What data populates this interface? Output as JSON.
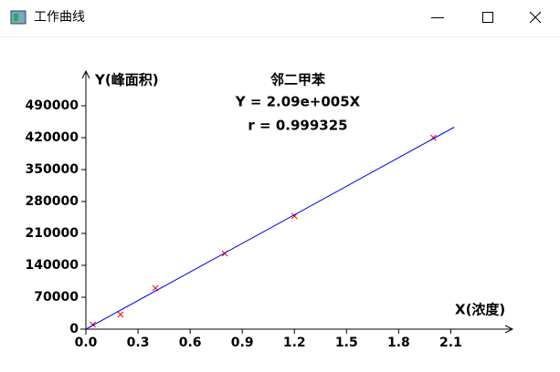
{
  "window_title": "工作曲线",
  "chart_data": {
    "type": "scatter",
    "title": "邻二甲苯",
    "equation": "Y = 2.09e+005X",
    "r_label": "r = 0.999325",
    "x_label": "X(浓度)",
    "y_label": "Y(峰面积)",
    "xlim": [
      0,
      2.45
    ],
    "ylim": [
      0,
      566000
    ],
    "xticks": [
      {
        "value": 0,
        "label": "0.0"
      },
      0.3,
      0.6,
      0.9,
      1.2,
      1.5,
      1.8,
      2.1
    ],
    "yticks": [
      0,
      70000,
      140000,
      210000,
      280000,
      350000,
      420000,
      490000
    ],
    "series": [
      {
        "type": "scatter",
        "color": "#ff0000",
        "x": [
          0.04,
          0.2,
          0.4,
          0.8,
          1.2,
          2.0
        ],
        "values": [
          10000,
          32000,
          90000,
          166000,
          248000,
          420000
        ]
      },
      {
        "type": "line",
        "color": "#0000ff",
        "x": [
          0,
          2.12
        ],
        "values": [
          0,
          443000
        ]
      }
    ]
  }
}
